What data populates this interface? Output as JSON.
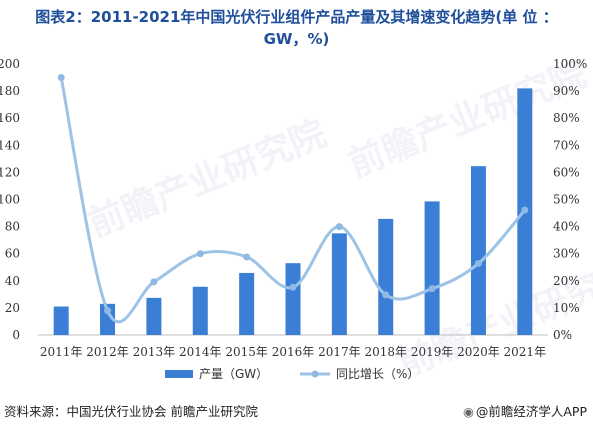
{
  "title_line1": "图表2：2011-2021年中国光伏行业组件产品产量及其增速变化趋势(单 位 ：",
  "title_line2": "GW，%)",
  "source": "资料来源：中国光伏行业协会 前瞻产业研究院",
  "credit": "@前瞻经济学人APP",
  "credit_icon": "camera-icon",
  "watermark": "前瞻产业研究院",
  "colors": {
    "title": "#1f4e9a",
    "bar": "#3a7fd5",
    "line": "#9dc3e6",
    "marker": "#8fb9e3",
    "axis_text": "#333333",
    "axis_line": "#bfbfbf"
  },
  "chart_data": {
    "type": "bar",
    "categories": [
      "2011年",
      "2012年",
      "2013年",
      "2014年",
      "2015年",
      "2016年",
      "2017年",
      "2018年",
      "2019年",
      "2020年",
      "2021年"
    ],
    "series": [
      {
        "name": "产量（GW）",
        "type": "bar",
        "axis": "left",
        "values": [
          21,
          23,
          27.4,
          35.6,
          45.8,
          53,
          75,
          85.7,
          98.6,
          124.6,
          182
        ]
      },
      {
        "name": "同比增长（%）",
        "type": "line",
        "axis": "right",
        "values": [
          95,
          9,
          19.6,
          30,
          28.8,
          17.6,
          40,
          14.8,
          17.1,
          26.4,
          46.1
        ]
      }
    ],
    "y_left": {
      "min": 0,
      "max": 200,
      "ticks": [
        0,
        20,
        40,
        60,
        80,
        100,
        120,
        140,
        160,
        180,
        200
      ]
    },
    "y_right": {
      "min": 0,
      "max": 100,
      "ticks": [
        "0%",
        "10%",
        "20%",
        "30%",
        "40%",
        "50%",
        "60%",
        "70%",
        "80%",
        "90%",
        "100%"
      ]
    },
    "grid": false,
    "legend_position": "bottom"
  }
}
